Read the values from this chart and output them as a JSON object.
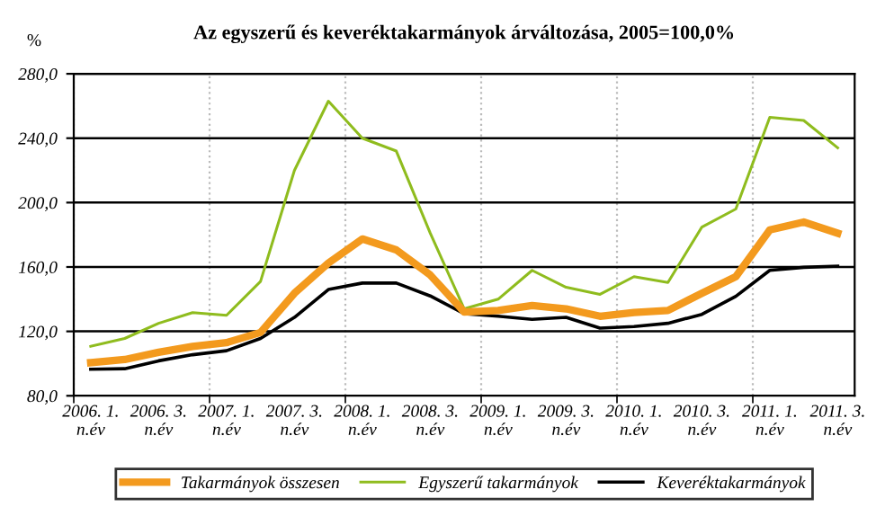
{
  "chart_data": {
    "type": "line",
    "title": "Az egyszerű és keveréktakarmányok árváltozása, 2005=100,0%",
    "ylabel": "%",
    "categories": [
      "2006. 1.\nn.év",
      null,
      "2006. 3.\nn.év",
      null,
      "2007. 1.\nn.év",
      null,
      "2007. 3.\nn.év",
      null,
      "2008. 1.\nn.év",
      null,
      "2008. 3.\nn.év",
      null,
      "2009. 1.\nn.év",
      null,
      "2009. 3.\nn.év",
      null,
      "2010. 1.\nn.év",
      null,
      "2010. 3.\nn.év",
      null,
      "2011. 1.\nn.év",
      null,
      "2011. 3.\nn.év"
    ],
    "series": [
      {
        "name": "Takarmányok összesen",
        "color": "#f39a1e",
        "values": [
          100.6,
          102.5,
          107,
          110.7,
          113,
          119.3,
          143.7,
          162.4,
          177.4,
          170.6,
          155,
          132,
          133,
          136,
          134,
          129.4,
          131.7,
          133,
          143.7,
          154,
          183,
          187.9,
          181
        ]
      },
      {
        "name": "Egyszerű takarmányok",
        "color": "#8fbc1e",
        "values": [
          110.7,
          115.6,
          125,
          131.7,
          130,
          151,
          220,
          263,
          240,
          232,
          181,
          134,
          140,
          157.9,
          147.4,
          143,
          154,
          150.4,
          184.8,
          196,
          253,
          251,
          234
        ]
      },
      {
        "name": "Keveréktakarmányok",
        "color": "#000000",
        "values": [
          96.5,
          96.8,
          101.7,
          105.5,
          108,
          115.6,
          128.7,
          146,
          150,
          150,
          142,
          131,
          129.4,
          127.5,
          128.7,
          122,
          123,
          125,
          130.6,
          141.8,
          157.9,
          159.8,
          160.5
        ]
      }
    ],
    "ylim": [
      80,
      280
    ],
    "yticks": [
      {
        "value": 80,
        "label": "80,0"
      },
      {
        "value": 120,
        "label": "120,0"
      },
      {
        "value": 160,
        "label": "160,0"
      },
      {
        "value": 200,
        "label": "200,0"
      },
      {
        "value": 240,
        "label": "240,0"
      },
      {
        "value": 280,
        "label": "280,0"
      }
    ],
    "grid": true,
    "legend": "bottom",
    "marker": "none",
    "line_style": "solid"
  }
}
